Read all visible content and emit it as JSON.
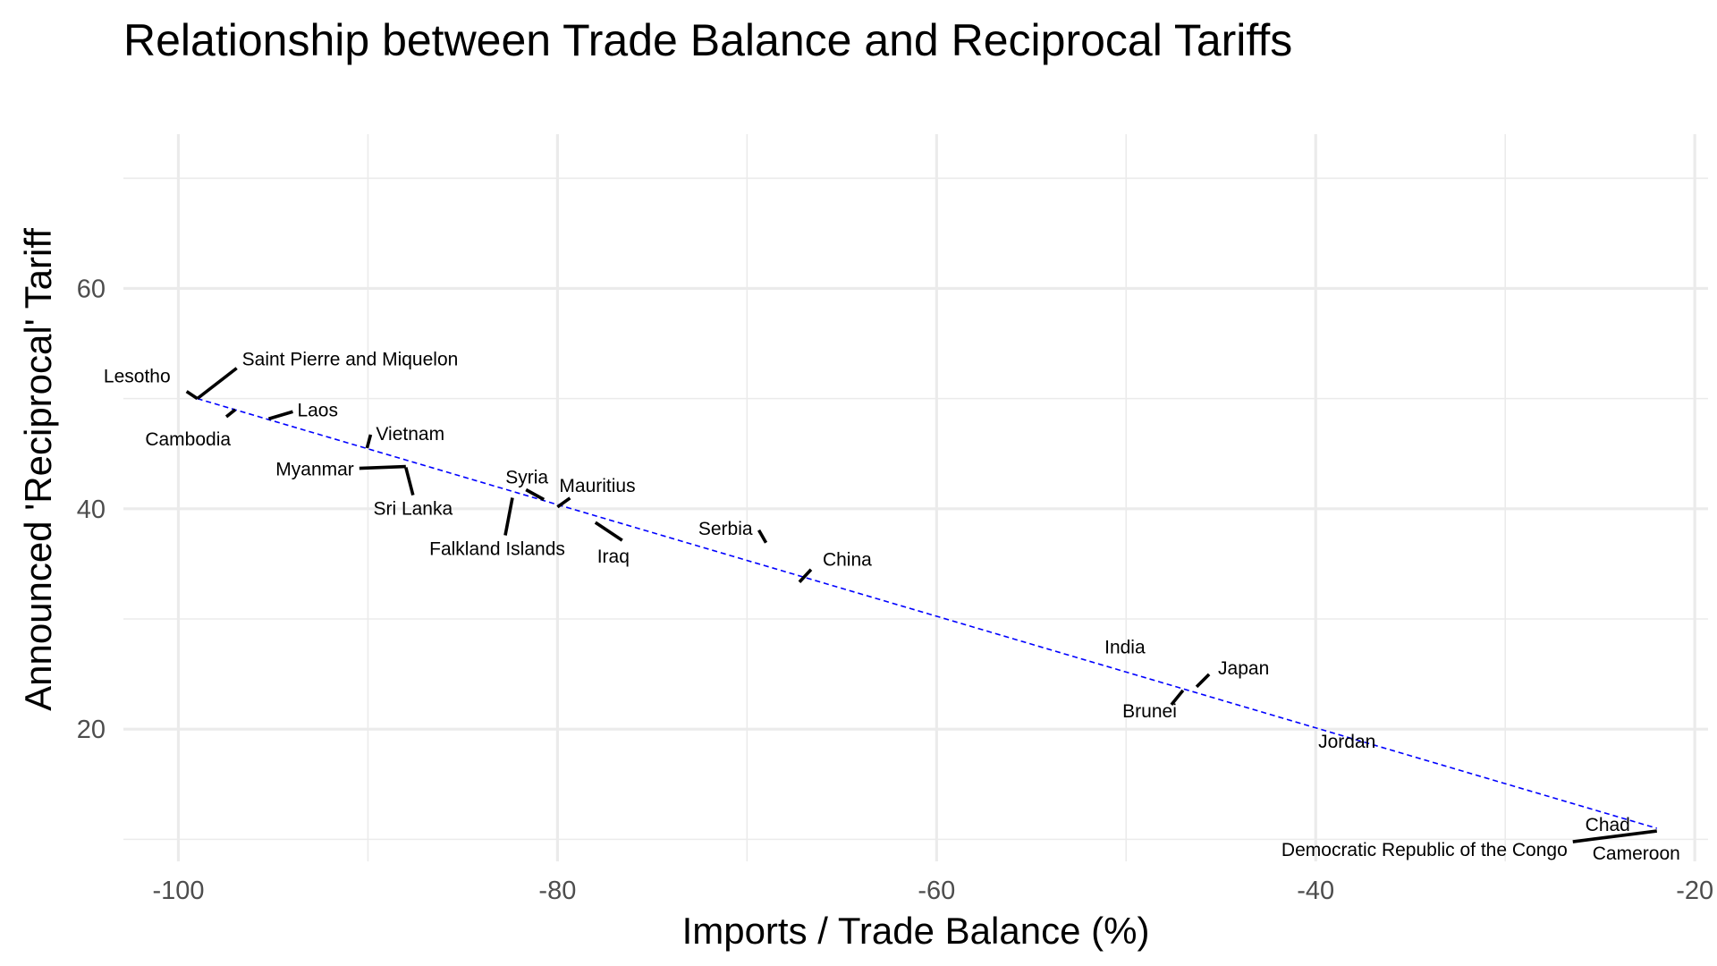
{
  "chart_data": {
    "type": "scatter",
    "title": "Relationship between Trade Balance and Reciprocal Tariffs",
    "xlabel": "Imports / Trade Balance (%)",
    "ylabel": "Announced 'Reciprocal' Tariff",
    "xlim": [
      -102.9,
      -19.3
    ],
    "ylim": [
      8,
      74
    ],
    "x_ticks": [
      -100,
      -80,
      -60,
      -40,
      -20
    ],
    "y_ticks": [
      20,
      40,
      60
    ],
    "grid": true,
    "trend_line": {
      "style": "dashed",
      "color": "#0000ff",
      "x": [
        -99,
        -22
      ],
      "y": [
        50,
        11
      ]
    },
    "points": [
      {
        "label": "Lesotho",
        "x": -99,
        "y": 50
      },
      {
        "label": "Saint Pierre and Miquelon",
        "x": -99,
        "y": 50
      },
      {
        "label": "Cambodia",
        "x": -97,
        "y": 49
      },
      {
        "label": "Laos",
        "x": -95,
        "y": 48
      },
      {
        "label": "Vietnam",
        "x": -90,
        "y": 46
      },
      {
        "label": "Myanmar",
        "x": -88,
        "y": 44
      },
      {
        "label": "Sri Lanka",
        "x": -88,
        "y": 44
      },
      {
        "label": "Syria",
        "x": -81,
        "y": 41
      },
      {
        "label": "Falkland Islands",
        "x": -82,
        "y": 41
      },
      {
        "label": "Mauritius",
        "x": -80,
        "y": 40
      },
      {
        "label": "Iraq",
        "x": -78,
        "y": 39
      },
      {
        "label": "Serbia",
        "x": -69,
        "y": 37
      },
      {
        "label": "China",
        "x": -67,
        "y": 34
      },
      {
        "label": "India",
        "x": -48,
        "y": 26
      },
      {
        "label": "Japan",
        "x": -46,
        "y": 24
      },
      {
        "label": "Brunei",
        "x": -47,
        "y": 24
      },
      {
        "label": "Jordan",
        "x": -40,
        "y": 20
      },
      {
        "label": "Chad",
        "x": -22,
        "y": 11
      },
      {
        "label": "Democratic Republic of the Congo",
        "x": -22,
        "y": 11
      },
      {
        "label": "Cameroon",
        "x": -22,
        "y": 11
      }
    ]
  }
}
